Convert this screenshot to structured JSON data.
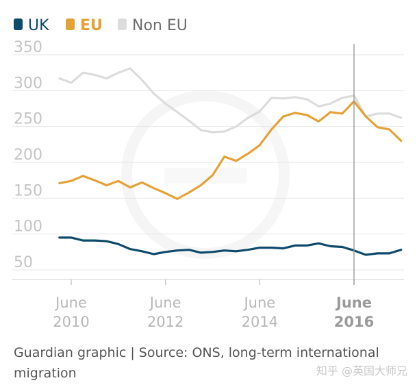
{
  "legend": [
    {
      "label": "UK",
      "color": "#0e4a6b"
    },
    {
      "label": "EU",
      "color": "#e5a134"
    },
    {
      "label": "Non EU",
      "color": "#dcdcdc"
    }
  ],
  "source_note": "Guardian graphic | Source: ONS, long-term international migration",
  "watermark_text": "知乎 @英国大师兄",
  "chart_data": {
    "type": "line",
    "title": "",
    "xlabel": "",
    "ylabel": "",
    "ylim": [
      40,
      360
    ],
    "yticks": [
      50,
      100,
      150,
      200,
      250,
      300,
      350
    ],
    "grid": true,
    "legend_position": "top-left",
    "x_ticks": [
      {
        "x": 2010.0,
        "line1": "June",
        "line2": "2010",
        "bold": false
      },
      {
        "x": 2012.0,
        "line1": "June",
        "line2": "2012",
        "bold": false
      },
      {
        "x": 2014.0,
        "line1": "June",
        "line2": "2014",
        "bold": false
      },
      {
        "x": 2016.0,
        "line1": "June",
        "line2": "2016",
        "bold": true
      }
    ],
    "marker_line_x": 2016.0,
    "x": [
      2009.75,
      2010.0,
      2010.25,
      2010.5,
      2010.75,
      2011.0,
      2011.25,
      2011.5,
      2011.75,
      2012.0,
      2012.25,
      2012.5,
      2012.75,
      2013.0,
      2013.25,
      2013.5,
      2013.75,
      2014.0,
      2014.25,
      2014.5,
      2014.75,
      2015.0,
      2015.25,
      2015.5,
      2015.75,
      2016.0,
      2016.25,
      2016.5,
      2016.75,
      2017.0
    ],
    "series": [
      {
        "name": "Non EU",
        "color": "#dcdcdc",
        "values": [
          317,
          311,
          325,
          322,
          317,
          325,
          331,
          315,
          296,
          282,
          270,
          258,
          245,
          242,
          243,
          250,
          262,
          271,
          290,
          289,
          291,
          288,
          278,
          282,
          290,
          293,
          264,
          268,
          268,
          262
        ]
      },
      {
        "name": "EU",
        "color": "#e5a134",
        "values": [
          171,
          174,
          181,
          175,
          168,
          174,
          165,
          172,
          164,
          157,
          149,
          158,
          168,
          182,
          208,
          202,
          212,
          224,
          246,
          264,
          269,
          266,
          257,
          270,
          268,
          285,
          264,
          249,
          246,
          230
        ]
      },
      {
        "name": "UK",
        "color": "#0e4a6b",
        "values": [
          95,
          95,
          91,
          91,
          90,
          86,
          79,
          76,
          72,
          75,
          77,
          78,
          74,
          75,
          77,
          76,
          78,
          81,
          81,
          80,
          84,
          84,
          87,
          83,
          82,
          77,
          71,
          73,
          73,
          78
        ]
      }
    ]
  }
}
